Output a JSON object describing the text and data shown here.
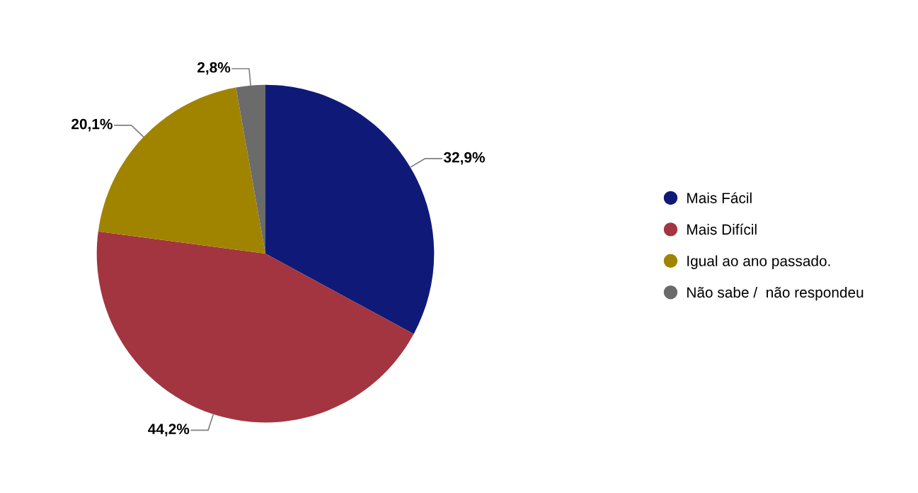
{
  "chart_data": {
    "type": "pie",
    "categories": [
      "Mais Fácil",
      "Mais Difícil",
      "Igual ao ano passado.",
      "Não sabe /  não respondeu"
    ],
    "values": [
      32.9,
      44.2,
      20.1,
      2.8
    ],
    "colors": [
      "#0f1a78",
      "#a2353f",
      "#a08400",
      "#6b6b6b"
    ],
    "value_labels": [
      "32,9%",
      "44,2%",
      "20,1%",
      "2,8%"
    ],
    "legend": "right"
  }
}
